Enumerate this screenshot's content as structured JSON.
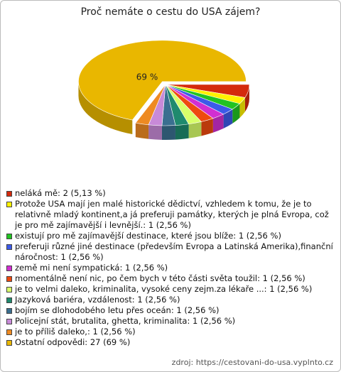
{
  "chart_data": {
    "type": "pie",
    "title": "Proč nemáte o cestu do USA zájem?",
    "categories": [
      "neláká mě: 2 (5,13 %)",
      "Protože USA mají jen malé historické dědictví, vzhledem k tomu, že je to relativně mladý kontinent,a já preferuji památky, kterých je plná Evropa, což je pro mě zajímavější i levnější.: 1 (2,56 %)",
      "existují pro mě zajímavější destinace, které jsou blíže: 1 (2,56 %)",
      "preferuji různé jiné destinace (především Evropa a Latinská Amerika),finanční náročnost: 1 (2,56 %)",
      "země mi není sympatická: 1 (2,56 %)",
      "momentálně není nic, po čem bych v této části světa toužil: 1 (2,56 %)",
      "je to velmi daleko, kriminalita, vysoké ceny zejm.za lékaře ...: 1 (2,56 %)",
      "Jazyková bariéra, vzdálenost: 1 (2,56 %)",
      "bojím se dlohodobého letu přes oceán: 1 (2,56 %)",
      "Policejní stát, brutalita, ghetta, kriminalita: 1 (2,56 %)",
      "je to příliš daleko,: 1 (2,56 %)",
      "Ostatní odpovědi: 27 (69 %)"
    ],
    "values": [
      5.13,
      2.56,
      2.56,
      2.56,
      2.56,
      2.56,
      2.56,
      2.56,
      2.56,
      2.56,
      2.56,
      69
    ],
    "value_labels": [
      null,
      null,
      null,
      null,
      null,
      null,
      null,
      null,
      null,
      null,
      null,
      "69 %"
    ],
    "colors": [
      "#d42a0c",
      "#fff200",
      "#22c322",
      "#3c5ae8",
      "#d12fd1",
      "#ee4a10",
      "#d8ff6a",
      "#1f8a6e",
      "#3a6f90",
      "#c88ad8",
      "#ee8a22",
      "#e9b700"
    ],
    "source": "zdroj: https://cestovani-do-usa.vyplnto.cz"
  }
}
